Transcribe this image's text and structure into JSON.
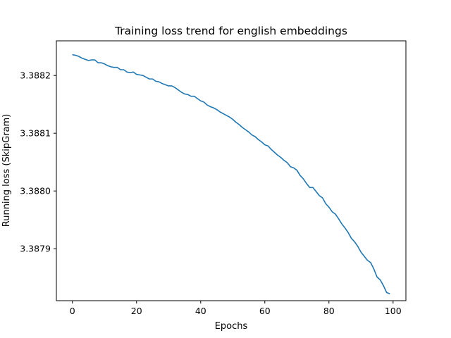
{
  "chart_data": {
    "type": "line",
    "title": "Training loss trend for english embeddings",
    "xlabel": "Epochs",
    "ylabel": "Running loss (SkipGram)",
    "xlim": [
      -5,
      104
    ],
    "ylim": [
      3.38781,
      3.38826
    ],
    "xticks": [
      0,
      20,
      40,
      60,
      80,
      100
    ],
    "xtick_labels": [
      "0",
      "20",
      "40",
      "60",
      "80",
      "100"
    ],
    "yticks": [
      3.3879,
      3.388,
      3.3881,
      3.3882
    ],
    "ytick_labels": [
      "3.3879",
      "3.3880",
      "3.3881",
      "3.3882"
    ],
    "grid": false,
    "line_color": "#1f77b4",
    "series": [
      {
        "x": [
          0,
          1,
          2,
          3,
          4,
          5,
          6,
          7,
          8,
          9,
          10,
          11,
          12,
          13,
          14,
          15,
          16,
          17,
          18,
          19,
          20,
          21,
          22,
          23,
          24,
          25,
          26,
          27,
          28,
          29,
          30,
          31,
          32,
          33,
          34,
          35,
          36,
          37,
          38,
          39,
          40,
          41,
          42,
          43,
          44,
          45,
          46,
          47,
          48,
          49,
          50,
          51,
          52,
          53,
          54,
          55,
          56,
          57,
          58,
          59,
          60,
          61,
          62,
          63,
          64,
          65,
          66,
          67,
          68,
          69,
          70,
          71,
          72,
          73,
          74,
          75,
          76,
          77,
          78,
          79,
          80,
          81,
          82,
          83,
          84,
          85,
          86,
          87,
          88,
          89,
          90,
          91,
          92,
          93,
          94,
          95,
          96,
          97,
          98,
          99
        ],
        "y": [
          3.388236,
          3.388235,
          3.388233,
          3.38823,
          3.388228,
          3.388226,
          3.388227,
          3.388227,
          3.388222,
          3.388222,
          3.38822,
          3.388217,
          3.388215,
          3.388214,
          3.388214,
          3.38821,
          3.38821,
          3.388206,
          3.388205,
          3.388206,
          3.388202,
          3.388201,
          3.3882,
          3.388197,
          3.388194,
          3.388194,
          3.38819,
          3.388189,
          3.388186,
          3.388184,
          3.388182,
          3.388182,
          3.388179,
          3.388175,
          3.388171,
          3.388168,
          3.388167,
          3.388164,
          3.388164,
          3.38816,
          3.388156,
          3.388154,
          3.388149,
          3.388146,
          3.388144,
          3.388141,
          3.388137,
          3.388134,
          3.388131,
          3.388128,
          3.388124,
          3.388119,
          3.388115,
          3.38811,
          3.388106,
          3.388102,
          3.388097,
          3.388094,
          3.388089,
          3.388085,
          3.38808,
          3.388078,
          3.388072,
          3.388067,
          3.388062,
          3.388058,
          3.388053,
          3.388049,
          3.388042,
          3.38804,
          3.388036,
          3.388027,
          3.388021,
          3.388013,
          3.388006,
          3.388006,
          3.387999,
          3.387992,
          3.387988,
          3.387978,
          3.387972,
          3.387964,
          3.38796,
          3.387952,
          3.387943,
          3.387936,
          3.387928,
          3.387918,
          3.387912,
          3.387904,
          3.387894,
          3.387887,
          3.38788,
          3.387876,
          3.387865,
          3.387851,
          3.387846,
          3.387836,
          3.387824,
          3.387822
        ]
      }
    ]
  }
}
